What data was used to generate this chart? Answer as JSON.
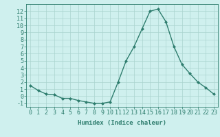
{
  "x": [
    0,
    1,
    2,
    3,
    4,
    5,
    6,
    7,
    8,
    9,
    10,
    11,
    12,
    13,
    14,
    15,
    16,
    17,
    18,
    19,
    20,
    21,
    22,
    23
  ],
  "y": [
    1.5,
    0.8,
    0.3,
    0.2,
    -0.3,
    -0.3,
    -0.6,
    -0.8,
    -1.0,
    -1.0,
    -0.8,
    2.0,
    5.0,
    7.0,
    9.5,
    12.0,
    12.3,
    10.5,
    7.0,
    4.5,
    3.2,
    2.0,
    1.2,
    0.3
  ],
  "line_color": "#2e7d6e",
  "marker": "D",
  "markersize": 2,
  "linewidth": 1.0,
  "bg_color": "#cff0ee",
  "grid_color": "#aad4cf",
  "xlabel": "Humidex (Indice chaleur)",
  "xlabel_fontsize": 6.5,
  "tick_fontsize": 6,
  "ylim": [
    -1.5,
    13.0
  ],
  "xlim": [
    -0.5,
    23.5
  ],
  "yticks": [
    -1,
    0,
    1,
    2,
    3,
    4,
    5,
    6,
    7,
    8,
    9,
    10,
    11,
    12
  ],
  "xticks": [
    0,
    1,
    2,
    3,
    4,
    5,
    6,
    7,
    8,
    9,
    10,
    11,
    12,
    13,
    14,
    15,
    16,
    17,
    18,
    19,
    20,
    21,
    22,
    23
  ]
}
